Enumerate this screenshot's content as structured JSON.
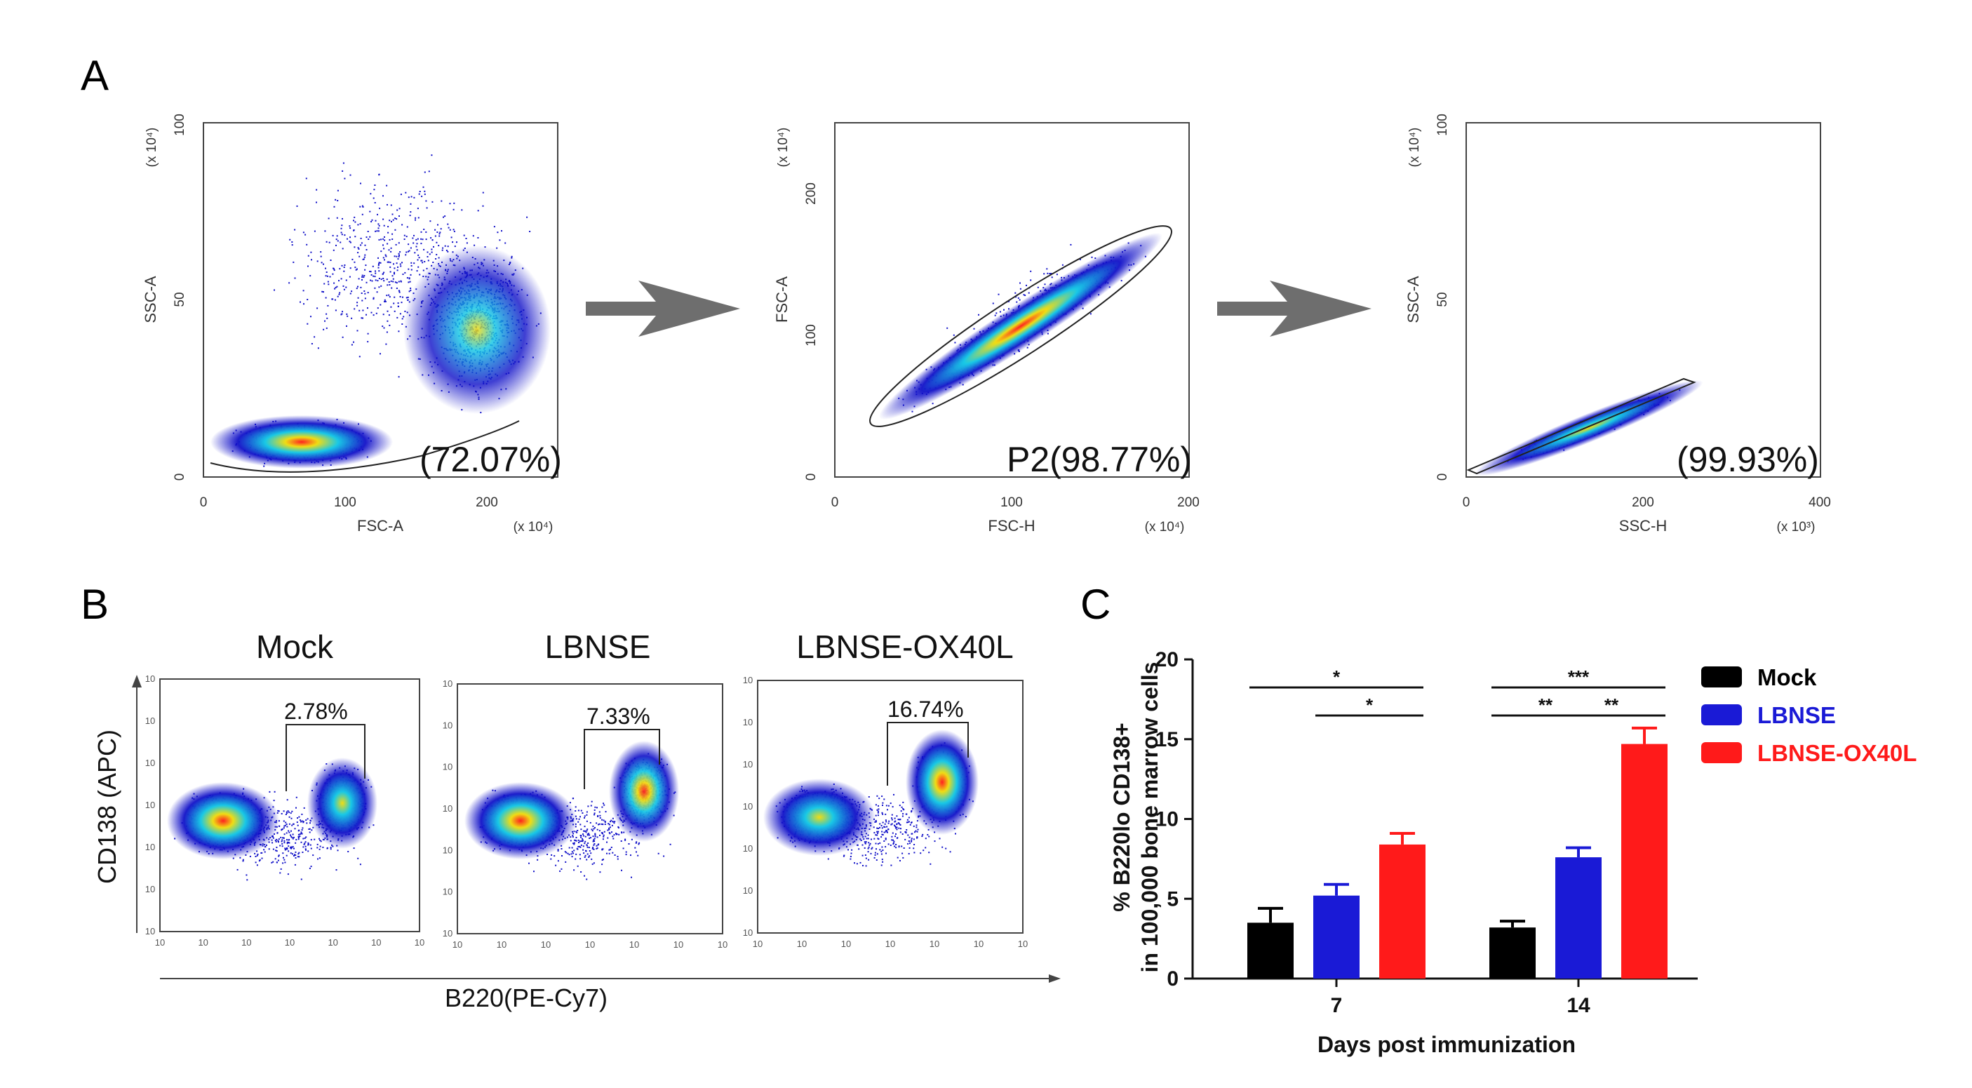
{
  "panel_letters": {
    "a": "A",
    "b": "B",
    "c": "C"
  },
  "colors": {
    "density_low": "#1010c8",
    "density_mid": "#19c8e6",
    "density_high": "#f0dc14",
    "density_peak": "#ff2020",
    "arrow": "#6e6e6e",
    "mock": "#000000",
    "lbnse": "#1a1ad6",
    "ox40l": "#ff1a1a"
  },
  "panel_a": {
    "plots": [
      {
        "xlabel": "FSC-A",
        "ylabel": "SSC-A",
        "x_exp": "(x 10⁴)",
        "y_exp": "(x 10⁴)",
        "xticks": [
          "0",
          "100",
          "200"
        ],
        "yticks": [
          "0",
          "50",
          "100"
        ],
        "gate_label": "(72.07%)"
      },
      {
        "xlabel": "FSC-H",
        "ylabel": "FSC-A",
        "x_exp": "(x 10⁴)",
        "y_exp": "(x 10⁴)",
        "xticks": [
          "0",
          "100",
          "200"
        ],
        "yticks": [
          "0",
          "100",
          "200"
        ],
        "gate_label": "P2(98.77%)"
      },
      {
        "xlabel": "SSC-H",
        "ylabel": "SSC-A",
        "x_exp": "(x 10³)",
        "y_exp": "(x 10⁴)",
        "xticks": [
          "0",
          "200",
          "400"
        ],
        "yticks": [
          "0",
          "50",
          "100"
        ],
        "gate_label": "(99.93%)"
      }
    ]
  },
  "panel_b": {
    "ylabel": "CD138 (APC)",
    "xlabel": "B220(PE-Cy7)",
    "tick_label": "10",
    "plots": [
      {
        "title": "Mock",
        "gate_pct": "2.78%"
      },
      {
        "title": "LBNSE",
        "gate_pct": "7.33%"
      },
      {
        "title": "LBNSE-OX40L",
        "gate_pct": "16.74%"
      }
    ]
  },
  "panel_c": {
    "ylabel_line1": "% B220lo CD138+",
    "ylabel_line2": "in 100,000 bone marrow cells",
    "xlabel": "Days post immunization",
    "significance": [
      {
        "group": "7",
        "from": "Mock",
        "to": "LBNSE-OX40L",
        "label": "*"
      },
      {
        "group": "7",
        "from": "LBNSE",
        "to": "LBNSE-OX40L",
        "label": "*"
      },
      {
        "group": "14",
        "from": "Mock",
        "to": "LBNSE-OX40L",
        "label": "***"
      },
      {
        "group": "14",
        "from": "Mock",
        "to": "LBNSE",
        "label": "**"
      },
      {
        "group": "14",
        "from": "LBNSE",
        "to": "LBNSE-OX40L",
        "label": "**"
      }
    ]
  },
  "chart_data": {
    "type": "bar",
    "categories": [
      "7",
      "14"
    ],
    "series": [
      {
        "name": "Mock",
        "values": [
          3.5,
          3.2
        ],
        "errors": [
          0.9,
          0.4
        ]
      },
      {
        "name": "LBNSE",
        "values": [
          5.2,
          7.6
        ],
        "errors": [
          0.7,
          0.6
        ]
      },
      {
        "name": "LBNSE-OX40L",
        "values": [
          8.4,
          14.7
        ],
        "errors": [
          0.7,
          1.0
        ]
      }
    ],
    "xlabel": "Days post immunization",
    "ylabel": "% B220lo CD138+ in 100,000 bone marrow cells",
    "ylim": [
      0,
      20
    ],
    "yticks": [
      0,
      5,
      10,
      15,
      20
    ],
    "legend": "right"
  }
}
